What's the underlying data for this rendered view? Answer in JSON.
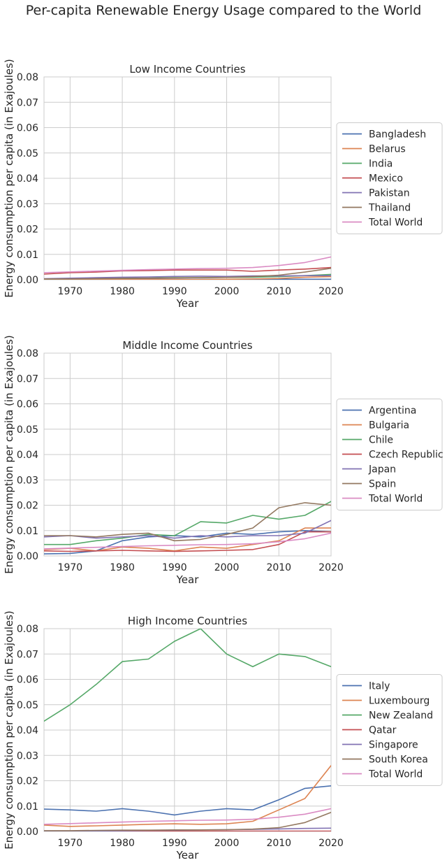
{
  "figure": {
    "title": "Per-capita Renewable Energy Usage compared to the World"
  },
  "chart_data": [
    {
      "type": "line",
      "title": "Low Income Countries",
      "xlabel": "Year",
      "ylabel": "Energy consumption per capita (in Exajoules)",
      "xlim": [
        1965,
        2020
      ],
      "ylim": [
        0,
        0.08
      ],
      "xticks": [
        "1970",
        "1980",
        "1990",
        "2000",
        "2010",
        "2020"
      ],
      "yticks": [
        "0.00",
        "0.01",
        "0.02",
        "0.03",
        "0.04",
        "0.05",
        "0.06",
        "0.07",
        "0.08"
      ],
      "grid": true,
      "legend_position": "outside-right",
      "x": [
        1965,
        1970,
        1975,
        1980,
        1985,
        1990,
        1995,
        2000,
        2005,
        2010,
        2015,
        2020
      ],
      "series": [
        {
          "name": "Bangladesh",
          "color": "#4c72b0",
          "values": [
            0.0001,
            0.0001,
            0.0001,
            0.0002,
            0.0002,
            0.0002,
            0.0002,
            0.0002,
            0.0002,
            0.0002,
            0.0002,
            0.0002
          ]
        },
        {
          "name": "Belarus",
          "color": "#dd8452",
          "values": [
            0.0001,
            0.0001,
            0.0001,
            0.0001,
            0.0001,
            0.0001,
            0.0001,
            0.0002,
            0.0003,
            0.0005,
            0.001,
            0.0012
          ]
        },
        {
          "name": "India",
          "color": "#55a868",
          "values": [
            0.0003,
            0.0004,
            0.0005,
            0.0006,
            0.0007,
            0.0008,
            0.0008,
            0.0009,
            0.001,
            0.0012,
            0.0016,
            0.0021
          ]
        },
        {
          "name": "Mexico",
          "color": "#c44e52",
          "values": [
            0.0022,
            0.0028,
            0.003,
            0.0035,
            0.0036,
            0.0038,
            0.0038,
            0.0038,
            0.0033,
            0.0038,
            0.0042,
            0.0048
          ]
        },
        {
          "name": "Pakistan",
          "color": "#8172b3",
          "values": [
            0.0004,
            0.0006,
            0.0008,
            0.001,
            0.0011,
            0.0013,
            0.0014,
            0.0013,
            0.0015,
            0.0015,
            0.0016,
            0.0016
          ]
        },
        {
          "name": "Thailand",
          "color": "#937860",
          "values": [
            0.0003,
            0.0003,
            0.0004,
            0.0005,
            0.0006,
            0.0007,
            0.0008,
            0.0009,
            0.0012,
            0.0018,
            0.003,
            0.0045
          ]
        },
        {
          "name": "Total World",
          "color": "#da8bc3",
          "values": [
            0.0028,
            0.0031,
            0.0034,
            0.0037,
            0.004,
            0.0042,
            0.0044,
            0.0045,
            0.0048,
            0.0056,
            0.0068,
            0.009
          ]
        }
      ]
    },
    {
      "type": "line",
      "title": "Middle Income Countries",
      "xlabel": "Year",
      "ylabel": "Energy consumption per capita (in Exajoules)",
      "xlim": [
        1965,
        2020
      ],
      "ylim": [
        0,
        0.08
      ],
      "xticks": [
        "1970",
        "1980",
        "1990",
        "2000",
        "2010",
        "2020"
      ],
      "yticks": [
        "0.00",
        "0.01",
        "0.02",
        "0.03",
        "0.04",
        "0.05",
        "0.06",
        "0.07",
        "0.08"
      ],
      "grid": true,
      "legend_position": "outside-right",
      "x": [
        1965,
        1970,
        1975,
        1980,
        1985,
        1990,
        1995,
        2000,
        2005,
        2010,
        2015,
        2020
      ],
      "series": [
        {
          "name": "Argentina",
          "color": "#4c72b0",
          "values": [
            0.0008,
            0.001,
            0.002,
            0.006,
            0.0075,
            0.008,
            0.0075,
            0.009,
            0.0085,
            0.0095,
            0.01,
            0.0095
          ]
        },
        {
          "name": "Bulgaria",
          "color": "#dd8452",
          "values": [
            0.0025,
            0.003,
            0.002,
            0.0035,
            0.003,
            0.002,
            0.0035,
            0.003,
            0.0045,
            0.006,
            0.011,
            0.011
          ]
        },
        {
          "name": "Chile",
          "color": "#55a868",
          "values": [
            0.0045,
            0.0045,
            0.006,
            0.007,
            0.0085,
            0.008,
            0.0135,
            0.013,
            0.016,
            0.0145,
            0.016,
            0.0215
          ]
        },
        {
          "name": "Czech Republic",
          "color": "#c44e52",
          "values": [
            0.002,
            0.0018,
            0.002,
            0.0022,
            0.002,
            0.0018,
            0.002,
            0.0022,
            0.0025,
            0.0045,
            0.0095,
            0.0095
          ]
        },
        {
          "name": "Japan",
          "color": "#8172b3",
          "values": [
            0.0075,
            0.008,
            0.007,
            0.0075,
            0.008,
            0.007,
            0.008,
            0.0075,
            0.008,
            0.008,
            0.009,
            0.014
          ]
        },
        {
          "name": "Spain",
          "color": "#937860",
          "values": [
            0.008,
            0.008,
            0.0075,
            0.0085,
            0.009,
            0.006,
            0.0065,
            0.0085,
            0.011,
            0.019,
            0.021,
            0.02
          ]
        },
        {
          "name": "Total World",
          "color": "#da8bc3",
          "values": [
            0.0028,
            0.0031,
            0.0034,
            0.0037,
            0.004,
            0.0042,
            0.0044,
            0.0045,
            0.0048,
            0.0056,
            0.0068,
            0.009
          ]
        }
      ]
    },
    {
      "type": "line",
      "title": "High Income Countries",
      "xlabel": "Year",
      "ylabel": "Energy consumption per capita (in Exajoules)",
      "xlim": [
        1965,
        2020
      ],
      "ylim": [
        0,
        0.08
      ],
      "xticks": [
        "1970",
        "1980",
        "1990",
        "2000",
        "2010",
        "2020"
      ],
      "yticks": [
        "0.00",
        "0.01",
        "0.02",
        "0.03",
        "0.04",
        "0.05",
        "0.06",
        "0.07",
        "0.08"
      ],
      "grid": true,
      "legend_position": "outside-right",
      "x": [
        1965,
        1970,
        1975,
        1980,
        1985,
        1990,
        1995,
        2000,
        2005,
        2010,
        2015,
        2020
      ],
      "series": [
        {
          "name": "Italy",
          "color": "#4c72b0",
          "values": [
            0.0088,
            0.0085,
            0.008,
            0.009,
            0.008,
            0.0065,
            0.008,
            0.009,
            0.0085,
            0.0125,
            0.017,
            0.018
          ]
        },
        {
          "name": "Luxembourg",
          "color": "#dd8452",
          "values": [
            0.0025,
            0.002,
            0.0022,
            0.0025,
            0.0028,
            0.003,
            0.0028,
            0.003,
            0.004,
            0.0085,
            0.013,
            0.026
          ]
        },
        {
          "name": "New Zealand",
          "color": "#55a868",
          "values": [
            0.0435,
            0.05,
            0.058,
            0.067,
            0.068,
            0.075,
            0.08,
            0.07,
            0.065,
            0.07,
            0.069,
            0.065
          ]
        },
        {
          "name": "Qatar",
          "color": "#c44e52",
          "values": [
            0.0001,
            0.0001,
            0.0001,
            0.0001,
            0.0001,
            0.0001,
            0.0001,
            0.0001,
            0.0001,
            0.0001,
            0.0001,
            0.0001
          ]
        },
        {
          "name": "Singapore",
          "color": "#8172b3",
          "values": [
            0.0001,
            0.0001,
            0.0002,
            0.0003,
            0.0004,
            0.0005,
            0.0006,
            0.0007,
            0.0008,
            0.001,
            0.0012,
            0.0013
          ]
        },
        {
          "name": "South Korea",
          "color": "#937860",
          "values": [
            0.0003,
            0.0003,
            0.0004,
            0.0005,
            0.0005,
            0.0006,
            0.0006,
            0.0007,
            0.0009,
            0.0015,
            0.0035,
            0.0075
          ]
        },
        {
          "name": "Total World",
          "color": "#da8bc3",
          "values": [
            0.0028,
            0.0031,
            0.0034,
            0.0037,
            0.004,
            0.0042,
            0.0044,
            0.0045,
            0.0048,
            0.0056,
            0.0068,
            0.009
          ]
        }
      ]
    }
  ]
}
